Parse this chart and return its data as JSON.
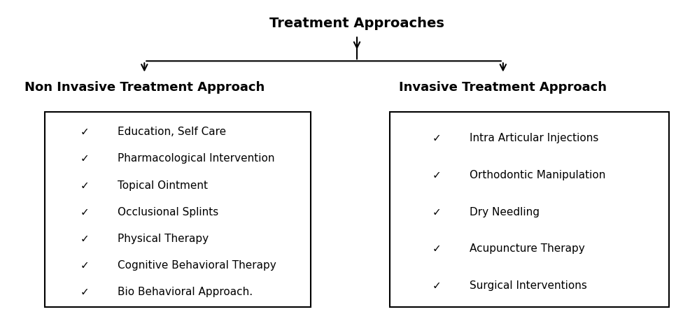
{
  "title": "Treatment Approaches",
  "title_fontsize": 14,
  "title_bold": true,
  "left_heading": "Non Invasive Treatment Approach",
  "right_heading": "Invasive Treatment Approach",
  "heading_fontsize": 13,
  "heading_bold": true,
  "left_items": [
    "Education, Self Care",
    "Pharmacological Intervention",
    "Topical Ointment",
    "Occlusional Splints",
    "Physical Therapy",
    "Cognitive Behavioral Therapy",
    "Bio Behavioral Approach."
  ],
  "right_items": [
    "Intra Articular Injections",
    "Orthodontic Manipulation",
    "Dry Needling",
    "Acupuncture Therapy",
    "Surgical Interventions"
  ],
  "item_fontsize": 11,
  "checkmark": "✓",
  "background_color": "#ffffff",
  "text_color": "#000000",
  "box_color": "#000000",
  "arrow_color": "#000000",
  "line_color": "#000000"
}
